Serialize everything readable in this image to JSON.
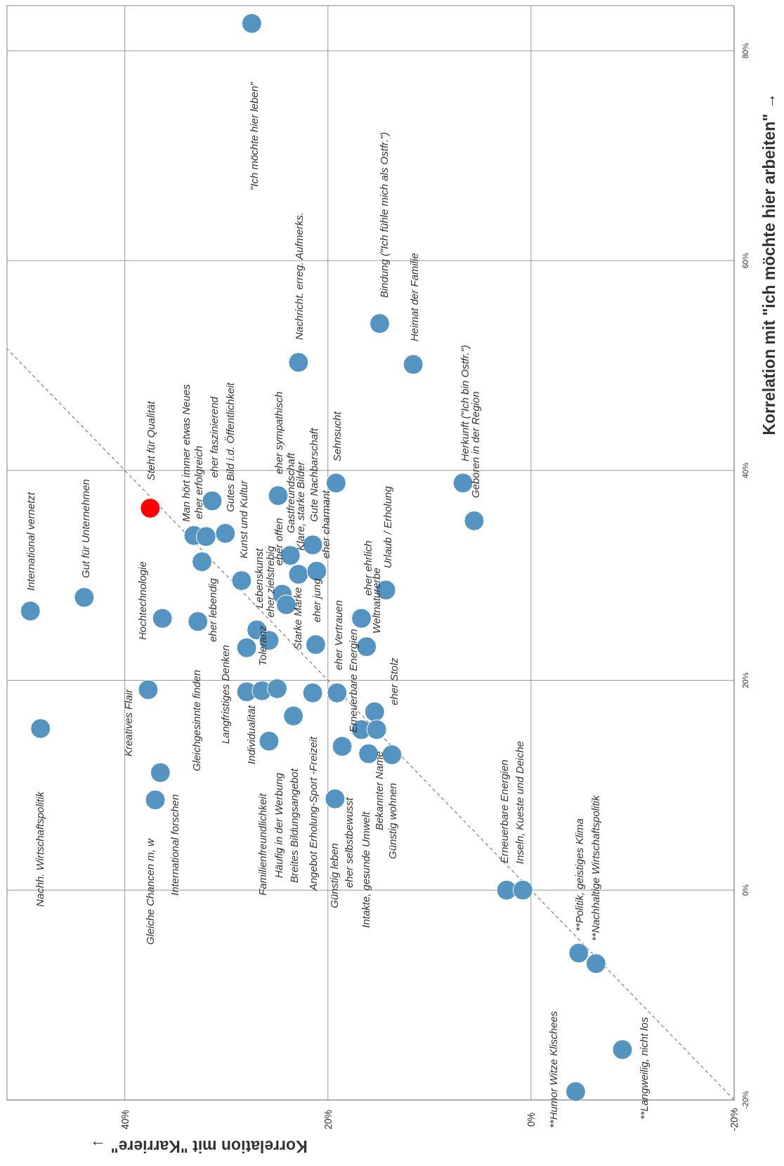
{
  "chart_data": {
    "type": "scatter",
    "xlabel": "Korrelation mit \"Karriere\" →",
    "ylabel": "Korrelation mit \"ich möchte hier arbeiten\" →",
    "xlim": [
      51.6,
      -20
    ],
    "ylim": [
      -20,
      84.3
    ],
    "xticks": [
      {
        "value": 40,
        "label": "40%"
      },
      {
        "value": 20,
        "label": "20%"
      },
      {
        "value": 0,
        "label": "0%"
      },
      {
        "value": -20,
        "label": "-20%"
      }
    ],
    "yticks": [
      {
        "value": -20,
        "label": "-20%"
      },
      {
        "value": 0,
        "label": "0%"
      },
      {
        "value": 20,
        "label": "20%"
      },
      {
        "value": 40,
        "label": "40%"
      },
      {
        "value": 60,
        "label": "60%"
      },
      {
        "value": 80,
        "label": "80%"
      }
    ],
    "grid": true,
    "series": [
      {
        "type": "line",
        "x": [
          -20,
          51.6
        ],
        "values": [
          -20,
          51.6
        ],
        "color": "#888888",
        "line_style": "dashed",
        "marker": "none"
      },
      {
        "marker": "circle",
        "x": [
          49.3,
          44.0,
          37.5,
          36.3,
          33.2,
          32.0,
          31.4,
          30.1,
          32.4,
          32.8,
          28.5,
          24.9,
          22.9,
          14.9,
          19.2,
          23.7,
          21.5,
          22.9,
          21.1,
          24.5,
          24.1,
          27.0,
          25.8,
          28.0,
          21.2,
          16.7,
          16.2,
          14.3,
          11.6,
          6.7,
          5.6,
          27.5,
          48.3,
          37.7,
          36.5,
          37.0,
          28.0,
          26.5,
          25.0,
          21.5,
          23.4,
          25.8,
          19.1,
          18.6,
          19.3,
          15.4,
          16.7,
          15.2,
          16.0,
          13.7,
          2.4,
          0.8,
          -4.7,
          -6.4,
          -9.0,
          -4.4
        ],
        "values": [
          26.6,
          27.9,
          36.4,
          25.9,
          33.8,
          33.7,
          37.1,
          34.0,
          31.3,
          25.6,
          29.5,
          37.6,
          50.3,
          54.0,
          38.8,
          31.9,
          32.9,
          30.1,
          30.4,
          28.2,
          27.2,
          24.8,
          23.8,
          23.1,
          23.4,
          25.9,
          23.2,
          28.6,
          50.1,
          38.8,
          35.2,
          82.6,
          15.4,
          19.1,
          11.2,
          8.6,
          18.9,
          19.0,
          19.2,
          18.8,
          16.6,
          14.2,
          18.8,
          13.7,
          8.7,
          17.0,
          15.3,
          15.3,
          13.0,
          12.9,
          0,
          0,
          -6.0,
          -7.0,
          -15.2,
          -19.2
        ],
        "colors": [
          "#5593c0",
          "#5593c0",
          "#ff0000",
          "#5593c0",
          "#5593c0",
          "#5593c0",
          "#5593c0",
          "#5593c0",
          "#5593c0",
          "#5593c0",
          "#5593c0",
          "#5593c0",
          "#5593c0",
          "#5593c0",
          "#5593c0",
          "#5593c0",
          "#5593c0",
          "#5593c0",
          "#5593c0",
          "#5593c0",
          "#5593c0",
          "#5593c0",
          "#5593c0",
          "#5593c0",
          "#5593c0",
          "#5593c0",
          "#5593c0",
          "#5593c0",
          "#5593c0",
          "#5593c0",
          "#5593c0",
          "#5593c0",
          "#5593c0",
          "#5593c0",
          "#5593c0",
          "#5593c0",
          "#5593c0",
          "#5593c0",
          "#5593c0",
          "#5593c0",
          "#5593c0",
          "#5593c0",
          "#5593c0",
          "#5593c0",
          "#5593c0",
          "#5593c0",
          "#5593c0",
          "#5593c0",
          "#5593c0",
          "#5593c0",
          "#5593c0",
          "#5593c0",
          "#5593c0",
          "#5593c0",
          "#5593c0",
          "#5593c0"
        ]
      }
    ],
    "annotations": [
      "International vernetzt",
      "Gut für Unternehmen",
      "Steht für Qualität",
      "Hochtechnologie",
      "Man hört immer etwas Neues",
      "eher erfolgreich",
      "eher faszinierend",
      "Gutes Bild i.d. Öffentlichkeit",
      "Kunst und Kultur",
      "eher lebendig",
      "eher sympathisch",
      "Gastfreundschaft",
      "Klare, starke Bilder",
      "Gute Nachbarschaft",
      "eher charmant",
      "eher offen",
      "Lebenskunst",
      "eher zielstrebig",
      "Toleranz",
      "Starke Marke",
      "eher jung",
      "Sehnsucht",
      "Nachricht. erreg. Aufmerks.",
      "Bindung (\"Ich fühle mich als Ostfr.\")",
      "eher ehrlich",
      "Weltnaturerbe",
      "Urlaub  / Erholung",
      "eher Vertrauen",
      "Erneuerbare Energien",
      "eher Stolz",
      "Heimat der Familie",
      "Herkunft (\"Ich bin Ostfr.\")",
      "Geboren in der Region",
      "\"Ich möchte hier leben\"",
      "Kreatives Flair",
      "Nachh. Wirtschaftspolitik",
      "Gleiche Chancen m, w",
      "International forschen",
      "Gleichgesinnte  finden",
      "Langfristiges Denken",
      "Individualität",
      "Familienfreundlichkeit",
      "Häufig in der Werbung",
      "Breites Bildungsangebot",
      "Angebot Erholung-Sport -Freizeit",
      "Günstig leben",
      "eher selbstbewusst",
      "Intakte, gesunde Umwelt",
      "Bekannter Name",
      "Günstig wohnen",
      "Erneuerbare Energien",
      "Inseln, Kueste und Deiche",
      "**Politik, geistiges Klima",
      "**Nachhaltige Wirtschaftspolitik",
      "**Humor Witze Klischees",
      "**Langweilig, nicht los"
    ]
  }
}
